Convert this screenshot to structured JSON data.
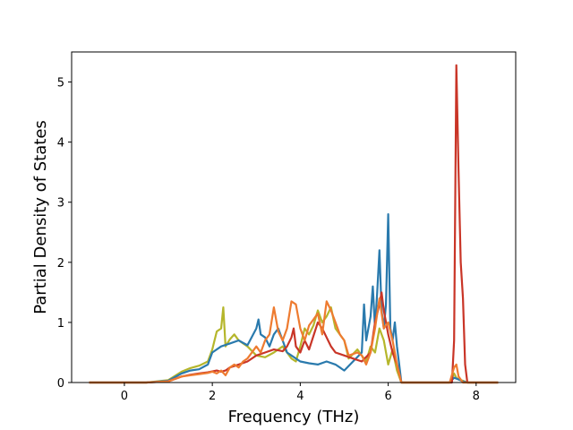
{
  "chart_data": {
    "type": "line",
    "title": "",
    "xlabel": "Frequency (THz)",
    "ylabel": "Partial Density of States",
    "xlim": [
      -1.2,
      8.9
    ],
    "ylim": [
      0,
      5.5
    ],
    "xticks": [
      0,
      2,
      4,
      6,
      8
    ],
    "xtick_labels": [
      "0",
      "2",
      "4",
      "6",
      "8"
    ],
    "yticks": [
      0,
      1,
      2,
      3,
      4,
      5
    ],
    "ytick_labels": [
      "0",
      "1",
      "2",
      "3",
      "4",
      "5"
    ],
    "grid": false,
    "legend": "none",
    "series": [
      {
        "color": "#b5b62b",
        "points": [
          [
            -0.8,
            0
          ],
          [
            0.5,
            0
          ],
          [
            1.0,
            0.04
          ],
          [
            1.3,
            0.18
          ],
          [
            1.5,
            0.24
          ],
          [
            1.7,
            0.28
          ],
          [
            1.9,
            0.35
          ],
          [
            2.0,
            0.55
          ],
          [
            2.1,
            0.85
          ],
          [
            2.2,
            0.9
          ],
          [
            2.25,
            1.25
          ],
          [
            2.3,
            0.6
          ],
          [
            2.4,
            0.72
          ],
          [
            2.5,
            0.8
          ],
          [
            2.6,
            0.7
          ],
          [
            2.8,
            0.6
          ],
          [
            3.0,
            0.45
          ],
          [
            3.2,
            0.42
          ],
          [
            3.4,
            0.5
          ],
          [
            3.6,
            0.6
          ],
          [
            3.8,
            0.4
          ],
          [
            3.9,
            0.35
          ],
          [
            4.0,
            0.6
          ],
          [
            4.1,
            0.9
          ],
          [
            4.2,
            0.8
          ],
          [
            4.3,
            0.95
          ],
          [
            4.4,
            1.2
          ],
          [
            4.5,
            1.0
          ],
          [
            4.6,
            1.1
          ],
          [
            4.7,
            1.25
          ],
          [
            4.8,
            0.9
          ],
          [
            5.0,
            0.7
          ],
          [
            5.1,
            0.4
          ],
          [
            5.3,
            0.55
          ],
          [
            5.5,
            0.35
          ],
          [
            5.6,
            0.6
          ],
          [
            5.7,
            0.5
          ],
          [
            5.8,
            0.9
          ],
          [
            5.9,
            0.7
          ],
          [
            6.0,
            0.3
          ],
          [
            6.1,
            0.55
          ],
          [
            6.2,
            0.2
          ],
          [
            6.3,
            0
          ],
          [
            7.4,
            0
          ],
          [
            7.5,
            0.15
          ],
          [
            7.55,
            0.08
          ],
          [
            7.6,
            0.05
          ],
          [
            7.7,
            0.03
          ],
          [
            7.8,
            0
          ],
          [
            8.5,
            0
          ]
        ]
      },
      {
        "color": "#2a7aad",
        "points": [
          [
            -0.8,
            0
          ],
          [
            0.5,
            0
          ],
          [
            1.0,
            0.03
          ],
          [
            1.3,
            0.15
          ],
          [
            1.5,
            0.2
          ],
          [
            1.7,
            0.22
          ],
          [
            1.9,
            0.3
          ],
          [
            2.0,
            0.5
          ],
          [
            2.2,
            0.6
          ],
          [
            2.4,
            0.65
          ],
          [
            2.6,
            0.7
          ],
          [
            2.8,
            0.62
          ],
          [
            3.0,
            0.9
          ],
          [
            3.05,
            1.05
          ],
          [
            3.1,
            0.8
          ],
          [
            3.2,
            0.75
          ],
          [
            3.3,
            0.6
          ],
          [
            3.4,
            0.8
          ],
          [
            3.5,
            0.9
          ],
          [
            3.6,
            0.7
          ],
          [
            3.7,
            0.5
          ],
          [
            3.9,
            0.4
          ],
          [
            4.0,
            0.35
          ],
          [
            4.2,
            0.32
          ],
          [
            4.4,
            0.3
          ],
          [
            4.6,
            0.35
          ],
          [
            4.8,
            0.3
          ],
          [
            4.9,
            0.25
          ],
          [
            5.0,
            0.2
          ],
          [
            5.2,
            0.35
          ],
          [
            5.4,
            0.5
          ],
          [
            5.45,
            1.3
          ],
          [
            5.5,
            0.7
          ],
          [
            5.6,
            1.1
          ],
          [
            5.65,
            1.6
          ],
          [
            5.7,
            0.9
          ],
          [
            5.75,
            1.5
          ],
          [
            5.8,
            2.2
          ],
          [
            5.85,
            1.2
          ],
          [
            5.9,
            0.9
          ],
          [
            5.95,
            1.3
          ],
          [
            6.0,
            2.8
          ],
          [
            6.05,
            0.9
          ],
          [
            6.1,
            0.7
          ],
          [
            6.15,
            1.0
          ],
          [
            6.2,
            0.6
          ],
          [
            6.25,
            0.3
          ],
          [
            6.3,
            0
          ],
          [
            7.4,
            0
          ],
          [
            7.5,
            0.08
          ],
          [
            7.6,
            0.05
          ],
          [
            7.7,
            0.02
          ],
          [
            7.8,
            0
          ],
          [
            8.5,
            0
          ]
        ]
      },
      {
        "color": "#c93527",
        "points": [
          [
            -0.8,
            0
          ],
          [
            0.5,
            0
          ],
          [
            1.0,
            0.02
          ],
          [
            1.3,
            0.1
          ],
          [
            1.5,
            0.13
          ],
          [
            1.7,
            0.15
          ],
          [
            1.9,
            0.17
          ],
          [
            2.1,
            0.2
          ],
          [
            2.2,
            0.18
          ],
          [
            2.3,
            0.2
          ],
          [
            2.4,
            0.25
          ],
          [
            2.6,
            0.3
          ],
          [
            2.8,
            0.35
          ],
          [
            3.0,
            0.45
          ],
          [
            3.2,
            0.5
          ],
          [
            3.4,
            0.55
          ],
          [
            3.6,
            0.52
          ],
          [
            3.7,
            0.6
          ],
          [
            3.8,
            0.75
          ],
          [
            3.85,
            0.9
          ],
          [
            3.9,
            0.6
          ],
          [
            4.0,
            0.5
          ],
          [
            4.1,
            0.7
          ],
          [
            4.2,
            0.55
          ],
          [
            4.4,
            1.0
          ],
          [
            4.5,
            0.9
          ],
          [
            4.6,
            0.75
          ],
          [
            4.7,
            0.6
          ],
          [
            4.8,
            0.5
          ],
          [
            5.0,
            0.45
          ],
          [
            5.2,
            0.4
          ],
          [
            5.4,
            0.35
          ],
          [
            5.6,
            0.5
          ],
          [
            5.7,
            1.0
          ],
          [
            5.8,
            1.3
          ],
          [
            5.85,
            1.5
          ],
          [
            5.9,
            1.2
          ],
          [
            6.0,
            0.8
          ],
          [
            6.1,
            0.5
          ],
          [
            6.2,
            0.3
          ],
          [
            6.3,
            0
          ],
          [
            7.45,
            0
          ],
          [
            7.5,
            0.7
          ],
          [
            7.55,
            5.28
          ],
          [
            7.6,
            3.5
          ],
          [
            7.65,
            2.0
          ],
          [
            7.7,
            1.4
          ],
          [
            7.75,
            0.3
          ],
          [
            7.8,
            0
          ],
          [
            8.5,
            0
          ]
        ]
      },
      {
        "color": "#ee7b30",
        "points": [
          [
            -0.8,
            0
          ],
          [
            0.5,
            0
          ],
          [
            1.0,
            0.02
          ],
          [
            1.3,
            0.1
          ],
          [
            1.5,
            0.12
          ],
          [
            1.7,
            0.14
          ],
          [
            1.9,
            0.16
          ],
          [
            2.0,
            0.18
          ],
          [
            2.1,
            0.15
          ],
          [
            2.2,
            0.2
          ],
          [
            2.3,
            0.12
          ],
          [
            2.4,
            0.25
          ],
          [
            2.5,
            0.3
          ],
          [
            2.6,
            0.25
          ],
          [
            2.7,
            0.35
          ],
          [
            2.8,
            0.4
          ],
          [
            2.9,
            0.5
          ],
          [
            3.0,
            0.6
          ],
          [
            3.1,
            0.5
          ],
          [
            3.2,
            0.7
          ],
          [
            3.3,
            0.8
          ],
          [
            3.4,
            1.25
          ],
          [
            3.5,
            0.85
          ],
          [
            3.6,
            0.7
          ],
          [
            3.7,
            0.9
          ],
          [
            3.8,
            1.35
          ],
          [
            3.9,
            1.3
          ],
          [
            4.0,
            0.9
          ],
          [
            4.1,
            0.7
          ],
          [
            4.2,
            0.95
          ],
          [
            4.3,
            1.05
          ],
          [
            4.4,
            1.15
          ],
          [
            4.5,
            0.8
          ],
          [
            4.6,
            1.35
          ],
          [
            4.7,
            1.2
          ],
          [
            4.8,
            1.0
          ],
          [
            4.9,
            0.8
          ],
          [
            5.0,
            0.7
          ],
          [
            5.1,
            0.45
          ],
          [
            5.3,
            0.5
          ],
          [
            5.4,
            0.45
          ],
          [
            5.5,
            0.3
          ],
          [
            5.6,
            0.5
          ],
          [
            5.7,
            0.9
          ],
          [
            5.8,
            1.4
          ],
          [
            5.9,
            0.9
          ],
          [
            6.0,
            1.0
          ],
          [
            6.1,
            0.7
          ],
          [
            6.2,
            0.3
          ],
          [
            6.3,
            0
          ],
          [
            7.4,
            0
          ],
          [
            7.5,
            0.25
          ],
          [
            7.55,
            0.3
          ],
          [
            7.6,
            0.1
          ],
          [
            7.7,
            0
          ],
          [
            8.5,
            0
          ]
        ]
      }
    ]
  }
}
